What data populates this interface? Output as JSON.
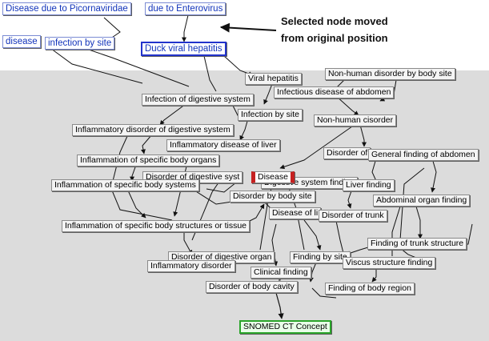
{
  "annotation": {
    "line1": "Selected node moved",
    "line2": "from original position"
  },
  "nodes": {
    "disease_picornaviridae": "Disease due to Picornaviridae",
    "due_to_enterovirus": "due to Enterovirus",
    "disease_small": "disease",
    "infection_by_site_top": "infection by site",
    "duck_viral_hepatitis": "Duck viral hepatitis",
    "viral_hepatitis": "Viral hepatitis",
    "non_human_disorder_by_body_site": "Non-human disorder by body site",
    "infectious_disease_of_abdomen": "Infectious disease of abdomen",
    "infection_of_digestive_system": "Infection of digestive system",
    "infection_by_site": "Infection by site",
    "non_human_disorder": "Non-human cisorder",
    "inflammatory_disorder_digestive": "Inflammatory disorder of digestive system",
    "inflammatory_disease_liver": "Inflammatory disease of liver",
    "disorder_of": "Disorder of",
    "general_finding_abdomen": "General finding of abdomen",
    "inflammation_specific_body_organs": "Inflammation of specific body organs",
    "disorder_digestive_syst_hidden": "Disorder of digestive syst",
    "digestive_system_finding": "Digestive system finding",
    "disease": "Disease",
    "liver_finding": "Liver finding",
    "inflammation_specific_body_systems": "Inflammation of specific body systems",
    "disorder_by_body_site": "Disorder by body site",
    "abdominal_organ_finding": "Abdominal organ finding",
    "disease_of_li": "Disease of li",
    "disorder_of_trunk": "Disorder of trunk",
    "inflammation_structures_tissue": "Inflammation of specific body structures or tissue",
    "finding_trunk_structure": "Finding of trunk structure",
    "disorder_digestive_organ": "Disorder of digestive organ",
    "finding_by_site": "Finding by site",
    "viscus_structure_finding": "Viscus structure finding",
    "inflammatory_disorder": "Inflammatory disorder",
    "clinical_finding": "Clinical finding",
    "finding_body_region": "Finding of body region",
    "disorder_body_cavity": "Disorder of body cavity",
    "snomed_ct_concept": "SNOMED CT Concept"
  }
}
